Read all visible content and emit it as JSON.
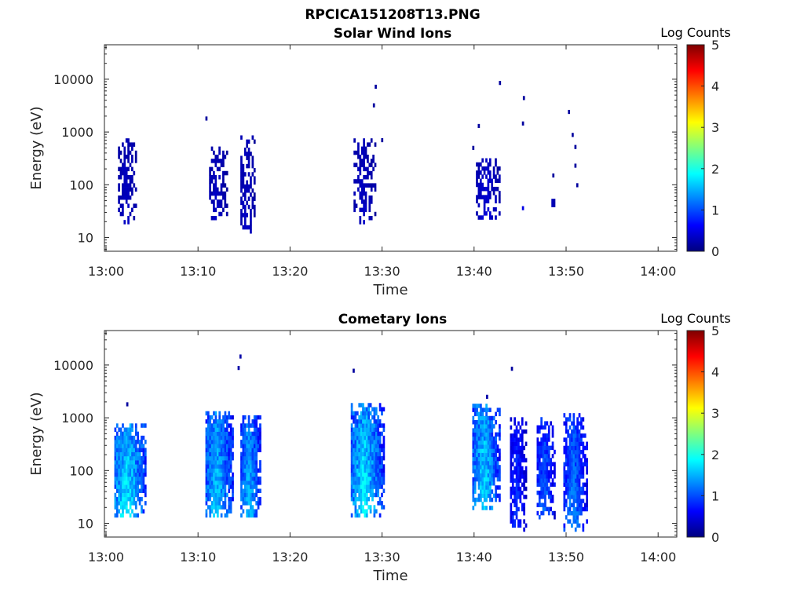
{
  "figure_title": "RPCICA151208T13.PNG",
  "colormap": [
    "#00007f",
    "#0000ff",
    "#007fff",
    "#00ffff",
    "#7fff7f",
    "#ffff00",
    "#ff7f00",
    "#ff0000",
    "#7f0000"
  ],
  "chart_data": [
    {
      "type": "heatmap",
      "title": "Solar Wind Ions",
      "xlabel": "Time",
      "ylabel": "Energy (eV)",
      "x_ticks": [
        "13:00",
        "13:10",
        "13:20",
        "13:30",
        "13:40",
        "13:50",
        "14:00"
      ],
      "x_range_minutes": [
        0,
        62
      ],
      "y_scale": "log",
      "y_ticks": [
        "10",
        "100",
        "1000",
        "10000"
      ],
      "y_range": [
        5.5,
        45000
      ],
      "colorbar_label": "Log Counts",
      "colorbar_range": [
        0,
        5
      ],
      "colorbar_ticks": [
        "0",
        "1",
        "2",
        "3",
        "4",
        "5"
      ],
      "clusters": [
        {
          "t": [
            1.3,
            3.4
          ],
          "e": [
            18,
            800
          ],
          "level": [
            0.1,
            0.35
          ],
          "fill": 0.45,
          "seed": 11
        },
        {
          "t": [
            11.2,
            13.2
          ],
          "e": [
            18,
            550
          ],
          "level": [
            0.1,
            0.35
          ],
          "fill": 0.4,
          "seed": 23
        },
        {
          "t": [
            14.6,
            16.2
          ],
          "e": [
            12,
            900
          ],
          "level": [
            0.1,
            0.35
          ],
          "fill": 0.4,
          "seed": 37
        },
        {
          "t": [
            26.9,
            29.3
          ],
          "e": [
            18,
            800
          ],
          "level": [
            0.1,
            0.35
          ],
          "fill": 0.4,
          "seed": 41
        },
        {
          "t": [
            40.2,
            42.8
          ],
          "e": [
            22,
            300
          ],
          "level": [
            0.1,
            0.45
          ],
          "fill": 0.45,
          "seed": 53
        },
        {
          "t": [
            48.4,
            48.9
          ],
          "e": [
            38,
            55
          ],
          "level": [
            0.15,
            0.3
          ],
          "fill": 0.8,
          "seed": 61
        }
      ],
      "points": [
        {
          "t": 10.8,
          "e": 1800,
          "level": 0.15
        },
        {
          "t": 29.2,
          "e": 7200,
          "level": 0.15
        },
        {
          "t": 29.0,
          "e": 3200,
          "level": 0.15
        },
        {
          "t": 29.9,
          "e": 700,
          "level": 0.15
        },
        {
          "t": 39.8,
          "e": 500,
          "level": 0.15
        },
        {
          "t": 40.4,
          "e": 1300,
          "level": 0.15
        },
        {
          "t": 42.7,
          "e": 8500,
          "level": 0.15
        },
        {
          "t": 45.3,
          "e": 4400,
          "level": 0.15
        },
        {
          "t": 45.2,
          "e": 1450,
          "level": 0.15
        },
        {
          "t": 45.2,
          "e": 36,
          "level": 0.5
        },
        {
          "t": 48.5,
          "e": 150,
          "level": 0.15
        },
        {
          "t": 50.2,
          "e": 2400,
          "level": 0.15
        },
        {
          "t": 50.6,
          "e": 880,
          "level": 0.15
        },
        {
          "t": 50.9,
          "e": 520,
          "level": 0.15
        },
        {
          "t": 50.9,
          "e": 230,
          "level": 0.15
        },
        {
          "t": 51.1,
          "e": 98,
          "level": 0.15
        }
      ]
    },
    {
      "type": "heatmap",
      "title": "Cometary Ions",
      "xlabel": "Time",
      "ylabel": "Energy (eV)",
      "x_ticks": [
        "13:00",
        "13:10",
        "13:20",
        "13:30",
        "13:40",
        "13:50",
        "14:00"
      ],
      "x_range_minutes": [
        0,
        62
      ],
      "y_scale": "log",
      "y_ticks": [
        "10",
        "100",
        "1000",
        "10000"
      ],
      "y_range": [
        5.5,
        45000
      ],
      "colorbar_label": "Log Counts",
      "colorbar_range": [
        0,
        5
      ],
      "colorbar_ticks": [
        "0",
        "1",
        "2",
        "3",
        "4",
        "5"
      ],
      "clusters": [
        {
          "t": [
            0.9,
            4.4
          ],
          "e": [
            13,
            800
          ],
          "level": [
            0.5,
            1.9
          ],
          "fill": 0.85,
          "seed": 101
        },
        {
          "t": [
            10.8,
            13.9
          ],
          "e": [
            13,
            1300
          ],
          "level": [
            0.4,
            1.7
          ],
          "fill": 0.85,
          "seed": 113
        },
        {
          "t": [
            14.6,
            16.9
          ],
          "e": [
            13,
            1200
          ],
          "level": [
            0.4,
            1.6
          ],
          "fill": 0.8,
          "seed": 127
        },
        {
          "t": [
            26.6,
            30.2
          ],
          "e": [
            13,
            2000
          ],
          "level": [
            0.4,
            1.9
          ],
          "fill": 0.85,
          "seed": 131
        },
        {
          "t": [
            39.8,
            42.9
          ],
          "e": [
            18,
            1800
          ],
          "level": [
            0.4,
            1.8
          ],
          "fill": 0.85,
          "seed": 149
        },
        {
          "t": [
            43.9,
            45.8
          ],
          "e": [
            7,
            1100
          ],
          "level": [
            0.2,
            0.9
          ],
          "fill": 0.6,
          "seed": 157
        },
        {
          "t": [
            46.8,
            48.9
          ],
          "e": [
            12,
            1100
          ],
          "level": [
            0.2,
            1.2
          ],
          "fill": 0.65,
          "seed": 163
        },
        {
          "t": [
            49.7,
            52.3
          ],
          "e": [
            7,
            1300
          ],
          "level": [
            0.3,
            1.3
          ],
          "fill": 0.7,
          "seed": 173
        }
      ],
      "points": [
        {
          "t": 2.2,
          "e": 1800,
          "level": 0.15
        },
        {
          "t": 14.5,
          "e": 14500,
          "level": 0.2
        },
        {
          "t": 14.3,
          "e": 8800,
          "level": 0.2
        },
        {
          "t": 26.8,
          "e": 7800,
          "level": 0.15
        },
        {
          "t": 44.0,
          "e": 8500,
          "level": 0.15
        },
        {
          "t": 41.3,
          "e": 2500,
          "level": 0.2
        }
      ]
    }
  ]
}
